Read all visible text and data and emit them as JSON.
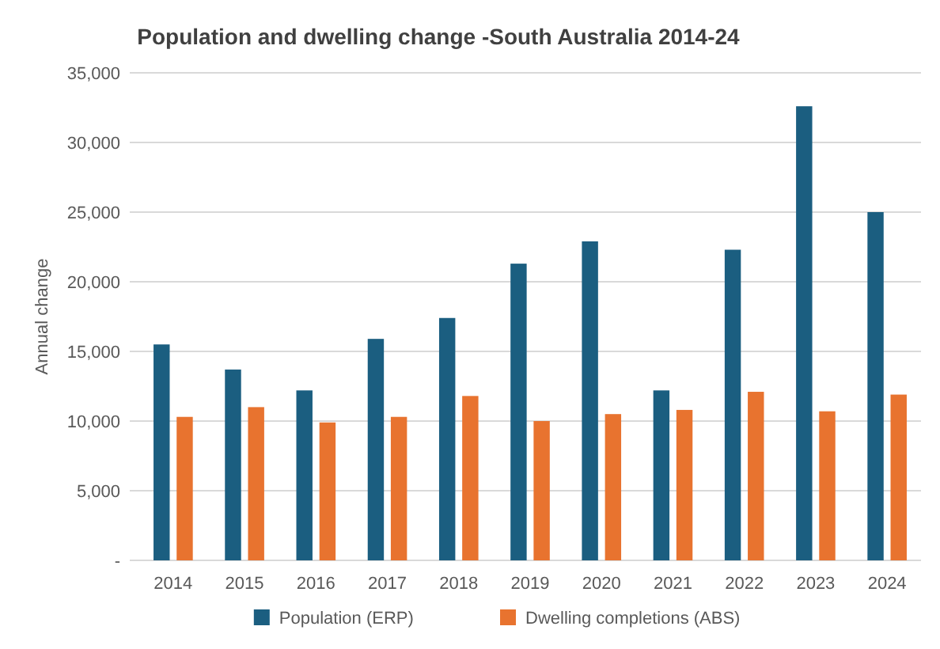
{
  "chart_data": {
    "type": "bar",
    "title": "Population and dwelling change -South Australia  2014-24",
    "ylabel": "Annual change",
    "categories": [
      "2014",
      "2015",
      "2016",
      "2017",
      "2018",
      "2019",
      "2020",
      "2021",
      "2022",
      "2023",
      "2024"
    ],
    "series": [
      {
        "name": "Population (ERP)",
        "color": "#1b5e80",
        "values": [
          15500,
          13700,
          12200,
          15900,
          17400,
          21300,
          22900,
          12200,
          22300,
          32600,
          25000
        ]
      },
      {
        "name": "Dwelling completions (ABS)",
        "color": "#e8732f",
        "values": [
          10300,
          11000,
          9900,
          10300,
          11800,
          10000,
          10500,
          10800,
          12100,
          10700,
          11900
        ]
      }
    ],
    "ylim": [
      0,
      35000
    ],
    "yticks": [
      {
        "value": 0,
        "label": "-"
      },
      {
        "value": 5000,
        "label": "5,000"
      },
      {
        "value": 10000,
        "label": "10,000"
      },
      {
        "value": 15000,
        "label": "15,000"
      },
      {
        "value": 20000,
        "label": "20,000"
      },
      {
        "value": 25000,
        "label": "25,000"
      },
      {
        "value": 30000,
        "label": "30,000"
      },
      {
        "value": 35000,
        "label": "35,000"
      }
    ],
    "grid": "y",
    "legend": "bottom"
  }
}
